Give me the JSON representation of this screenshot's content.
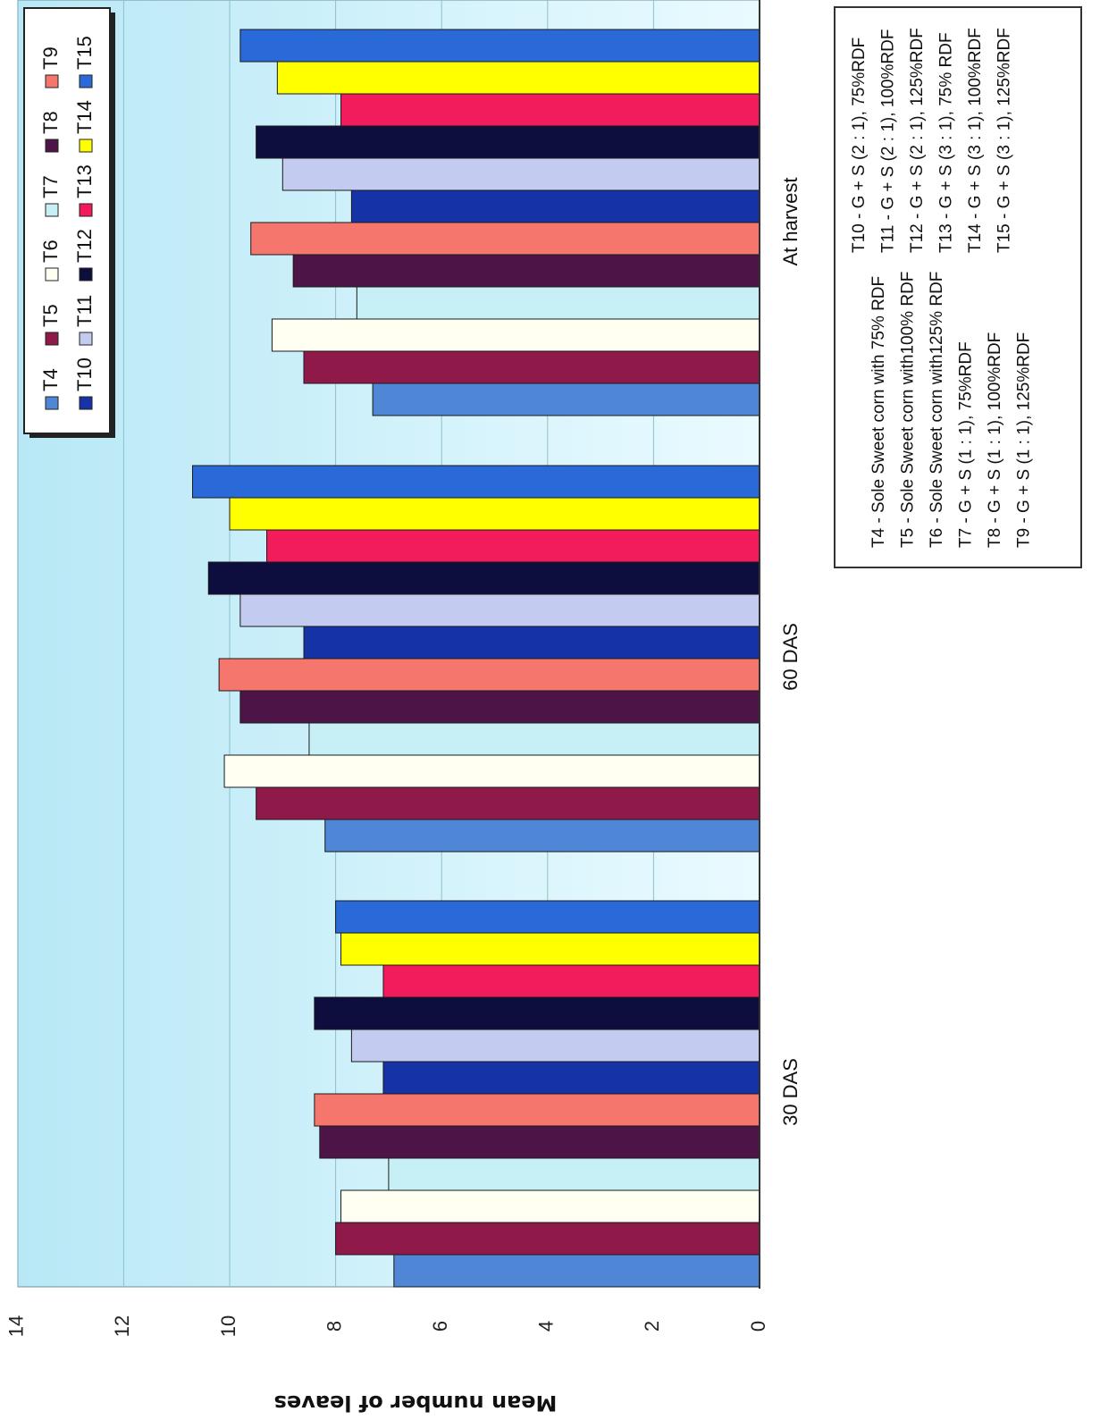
{
  "chart_data": {
    "type": "bar",
    "orientation": "horizontal",
    "title": "",
    "ylabel": "Mean number of leaves",
    "xlim": [
      0,
      14
    ],
    "ticks": [
      "0",
      "2",
      "4",
      "6",
      "8",
      "10",
      "12",
      "14"
    ],
    "grid": true,
    "legend_position": "top-left",
    "categories": [
      "30 DAS",
      "60 DAS",
      "At harvest"
    ],
    "series": [
      {
        "name": "T4",
        "color": "#4f86d6",
        "values": [
          6.9,
          8.2,
          7.3
        ]
      },
      {
        "name": "T5",
        "color": "#8f1a4a",
        "values": [
          8.0,
          9.5,
          8.6
        ]
      },
      {
        "name": "T6",
        "color": "#fffff2",
        "values": [
          7.9,
          10.1,
          9.2
        ]
      },
      {
        "name": "T7",
        "color": "#c6f0f6",
        "values": [
          7.0,
          8.5,
          7.6
        ]
      },
      {
        "name": "T8",
        "color": "#4d1447",
        "values": [
          8.3,
          9.8,
          8.8
        ]
      },
      {
        "name": "T9",
        "color": "#f4766c",
        "values": [
          8.4,
          10.2,
          9.6
        ]
      },
      {
        "name": "T10",
        "color": "#1533a7",
        "values": [
          7.1,
          8.6,
          7.7
        ]
      },
      {
        "name": "T11",
        "color": "#c3cbf0",
        "values": [
          7.7,
          9.8,
          9.0
        ]
      },
      {
        "name": "T12",
        "color": "#0d0d3e",
        "values": [
          8.4,
          10.4,
          9.5
        ]
      },
      {
        "name": "T13",
        "color": "#f21b5c",
        "values": [
          7.1,
          9.3,
          7.9
        ]
      },
      {
        "name": "T14",
        "color": "#ffff00",
        "values": [
          7.9,
          10.0,
          9.1
        ]
      },
      {
        "name": "T15",
        "color": "#2a6ad8",
        "values": [
          8.0,
          10.7,
          9.8
        ]
      }
    ],
    "legend_labels": [
      "T4",
      "T5",
      "T6",
      "T7",
      "T8",
      "T9",
      "T10",
      "T11",
      "T12",
      "T13",
      "T14",
      "T15"
    ],
    "notes_left": [
      "T4 - Sole Sweet corn with 75% RDF",
      "T5 - Sole Sweet corn with100% RDF",
      "T6 - Sole Sweet corn with125% RDF",
      "T7 - G + S  (1 : 1),    75%RDF",
      "T8 - G + S  (1 : 1), 100%RDF",
      "T9 - G + S  (1 : 1), 125%RDF"
    ],
    "notes_right": [
      "T10 - G + S  (2 : 1),    75%RDF",
      "T11 - G + S  (2 : 1), 100%RDF",
      "T12 - G + S  (2 : 1), 125%RDF",
      "T13 - G + S  (3 : 1),    75% RDF",
      "T14 - G + S  (3 : 1), 100%RDF",
      "T15 - G + S  (3 : 1), 125%RDF"
    ]
  }
}
